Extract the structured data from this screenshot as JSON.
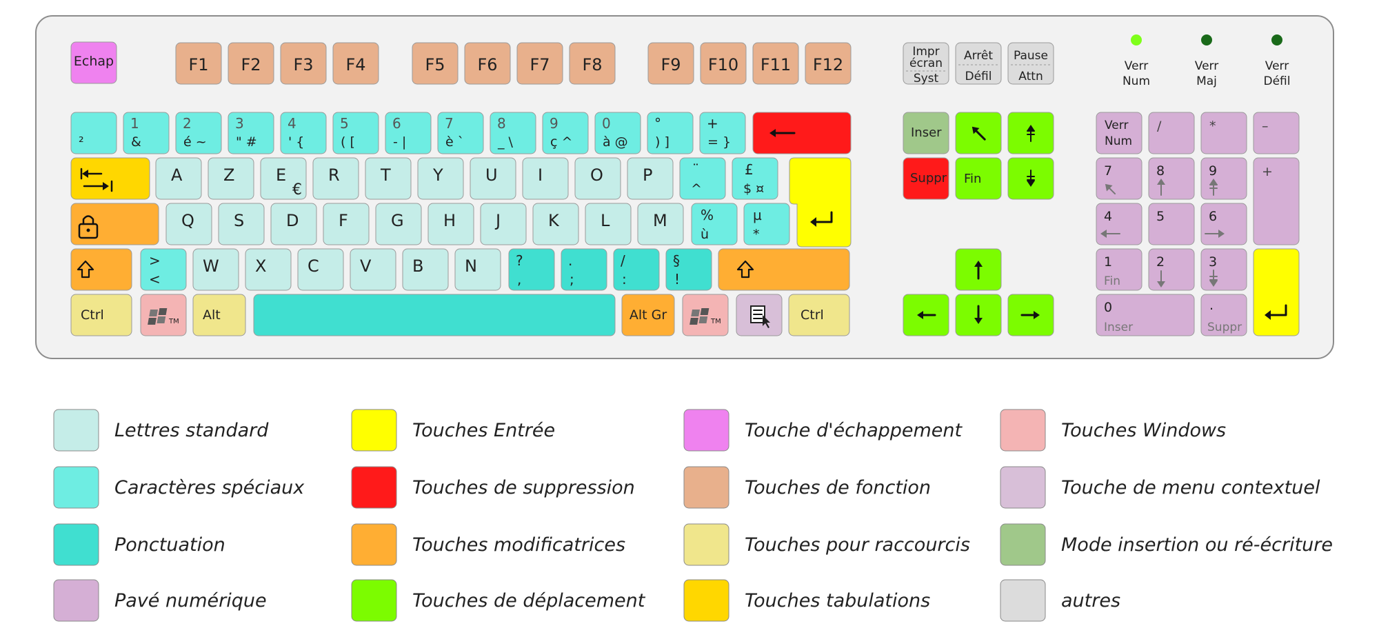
{
  "colors": {
    "letters": "#c5ede8",
    "special": "#6eede2",
    "punct": "#40dfd0",
    "numpad": "#d5afd5",
    "enter": "#ffff00",
    "delete": "#ff1a1a",
    "modifier": "#ffae33",
    "arrows": "#7cfc00",
    "escape": "#ef82ef",
    "function": "#e8b08c",
    "shortcut": "#f0e68c",
    "tab": "#ffd700",
    "windows": "#f4b4b4",
    "menu": "#d8bfd8",
    "insert": "#a0c88a",
    "other": "#dcdcdc",
    "board": "#f2f2f2",
    "border": "#8c8c8c",
    "led_on": "#7fff1a",
    "led_off": "#1a6a1a"
  },
  "keyboard": {
    "escape": "Echap",
    "function_keys": [
      "F1",
      "F2",
      "F3",
      "F4",
      "F5",
      "F6",
      "F7",
      "F8",
      "F9",
      "F10",
      "F11",
      "F12"
    ],
    "system_keys": {
      "print": [
        "Impr",
        "écran",
        "Syst"
      ],
      "scroll": [
        "Arrêt",
        "Défil"
      ],
      "pause": [
        "Pause",
        "Attn"
      ]
    },
    "indicators": [
      {
        "label": [
          "Verr",
          "Num"
        ],
        "on": true
      },
      {
        "label": [
          "Verr",
          "Maj"
        ],
        "on": false
      },
      {
        "label": [
          "Verr",
          "Défil"
        ],
        "on": false
      }
    ],
    "number_row": [
      {
        "top": "",
        "bottom": "²"
      },
      {
        "top": "1",
        "bottom": "&"
      },
      {
        "top": "2",
        "bottom": "é  ~"
      },
      {
        "top": "3",
        "bottom": "\"  #"
      },
      {
        "top": "4",
        "bottom": "'   {"
      },
      {
        "top": "5",
        "bottom": "(   ["
      },
      {
        "top": "6",
        "bottom": "-   |"
      },
      {
        "top": "7",
        "bottom": "è   `"
      },
      {
        "top": "8",
        "bottom": "_   \\"
      },
      {
        "top": "9",
        "bottom": "ç  ^"
      },
      {
        "top": "0",
        "bottom": "à  @"
      },
      {
        "top": "°",
        "bottom": ")   ]"
      },
      {
        "top": "+",
        "bottom": "=  }"
      }
    ],
    "row_a": [
      "A",
      "Z",
      "E",
      "R",
      "T",
      "Y",
      "U",
      "I",
      "O",
      "P"
    ],
    "euro": "€",
    "row_a_special": [
      {
        "top": "¨",
        "bottom": "^"
      },
      {
        "top": "£",
        "bottom": "$  ¤"
      }
    ],
    "row_q": [
      "Q",
      "S",
      "D",
      "F",
      "G",
      "H",
      "J",
      "K",
      "L",
      "M"
    ],
    "row_q_special": [
      {
        "top": "%",
        "bottom": "ù"
      },
      {
        "top": "µ",
        "bottom": "*"
      }
    ],
    "less_greater": {
      "top": ">",
      "bottom": "<"
    },
    "row_w": [
      "W",
      "X",
      "C",
      "V",
      "B",
      "N"
    ],
    "row_w_punct": [
      {
        "top": "?",
        "bottom": ","
      },
      {
        "top": ".",
        "bottom": ";"
      },
      {
        "top": "/",
        "bottom": ":"
      },
      {
        "top": "§",
        "bottom": "!"
      }
    ],
    "bottom_row": {
      "ctrl": "Ctrl",
      "alt": "Alt",
      "altgr": "Alt Gr",
      "windows_tm": "TM"
    },
    "nav_keys": {
      "insert": "Inser",
      "delete": "Suppr",
      "end": "Fin"
    },
    "numpad": {
      "numlock": [
        "Verr",
        "Num"
      ],
      "divide": "/",
      "multiply": "*",
      "minus": "–",
      "plus": "+",
      "keys": [
        {
          "main": "7",
          "sub": ""
        },
        {
          "main": "8",
          "sub": ""
        },
        {
          "main": "9",
          "sub": ""
        },
        {
          "main": "4",
          "sub": ""
        },
        {
          "main": "5",
          "sub": ""
        },
        {
          "main": "6",
          "sub": ""
        },
        {
          "main": "1",
          "sub": "Fin"
        },
        {
          "main": "2",
          "sub": ""
        },
        {
          "main": "3",
          "sub": ""
        }
      ],
      "zero": {
        "main": "0",
        "sub": "Inser"
      },
      "dot": {
        "main": ".",
        "sub": "Suppr"
      }
    }
  },
  "legend": [
    {
      "color": "letters",
      "label": "Lettres standard"
    },
    {
      "color": "special",
      "label": "Caractères spéciaux"
    },
    {
      "color": "punct",
      "label": "Ponctuation"
    },
    {
      "color": "numpad",
      "label": "Pavé numérique"
    },
    {
      "color": "enter",
      "label": "Touches Entrée"
    },
    {
      "color": "delete",
      "label": "Touches de suppression"
    },
    {
      "color": "modifier",
      "label": "Touches modificatrices"
    },
    {
      "color": "arrows",
      "label": "Touches de déplacement"
    },
    {
      "color": "escape",
      "label": "Touche d'échappement"
    },
    {
      "color": "function",
      "label": "Touches de fonction"
    },
    {
      "color": "shortcut",
      "label": "Touches pour raccourcis"
    },
    {
      "color": "tab",
      "label": "Touches tabulations"
    },
    {
      "color": "windows",
      "label": "Touches Windows"
    },
    {
      "color": "menu",
      "label": "Touche de menu contextuel"
    },
    {
      "color": "insert",
      "label": "Mode insertion ou ré-écriture"
    },
    {
      "color": "other",
      "label": "autres"
    }
  ]
}
